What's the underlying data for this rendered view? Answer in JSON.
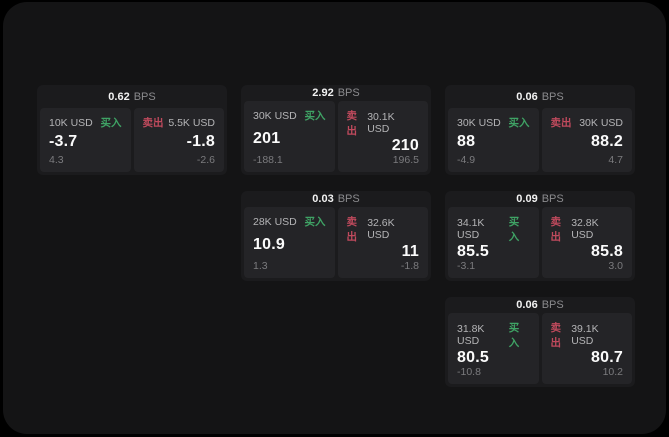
{
  "labels": {
    "buy": "买入",
    "sell": "卖出",
    "bps_unit": "BPS"
  },
  "colors": {
    "buy_green": "#3fa365",
    "sell_red": "#c04a5d",
    "window_bg": "#141415",
    "card_bg": "#1b1b1d",
    "panel_bg": "#242427"
  },
  "cards": [
    {
      "bps": "0.62",
      "grid": {
        "row": 1,
        "col": 1
      },
      "buy": {
        "amount": "10K USD",
        "value": "-3.7",
        "sub": "4.3"
      },
      "sell": {
        "amount": "5.5K USD",
        "value": "-1.8",
        "sub": "-2.6"
      }
    },
    {
      "bps": "2.92",
      "grid": {
        "row": 1,
        "col": 2
      },
      "buy": {
        "amount": "30K USD",
        "value": "201",
        "sub": "-188.1"
      },
      "sell": {
        "amount": "30.1K USD",
        "value": "210",
        "sub": "196.5"
      }
    },
    {
      "bps": "0.06",
      "grid": {
        "row": 1,
        "col": 3
      },
      "buy": {
        "amount": "30K USD",
        "value": "88",
        "sub": "-4.9"
      },
      "sell": {
        "amount": "30K USD",
        "value": "88.2",
        "sub": "4.7"
      }
    },
    {
      "bps": "0.03",
      "grid": {
        "row": 2,
        "col": 2
      },
      "buy": {
        "amount": "28K USD",
        "value": "10.9",
        "sub": "1.3"
      },
      "sell": {
        "amount": "32.6K USD",
        "value": "11",
        "sub": "-1.8"
      }
    },
    {
      "bps": "0.09",
      "grid": {
        "row": 2,
        "col": 3
      },
      "buy": {
        "amount": "34.1K USD",
        "value": "85.5",
        "sub": "-3.1"
      },
      "sell": {
        "amount": "32.8K USD",
        "value": "85.8",
        "sub": "3.0"
      }
    },
    {
      "bps": "0.06",
      "grid": {
        "row": 3,
        "col": 3
      },
      "buy": {
        "amount": "31.8K USD",
        "value": "80.5",
        "sub": "-10.8"
      },
      "sell": {
        "amount": "39.1K USD",
        "value": "80.7",
        "sub": "10.2"
      }
    }
  ]
}
